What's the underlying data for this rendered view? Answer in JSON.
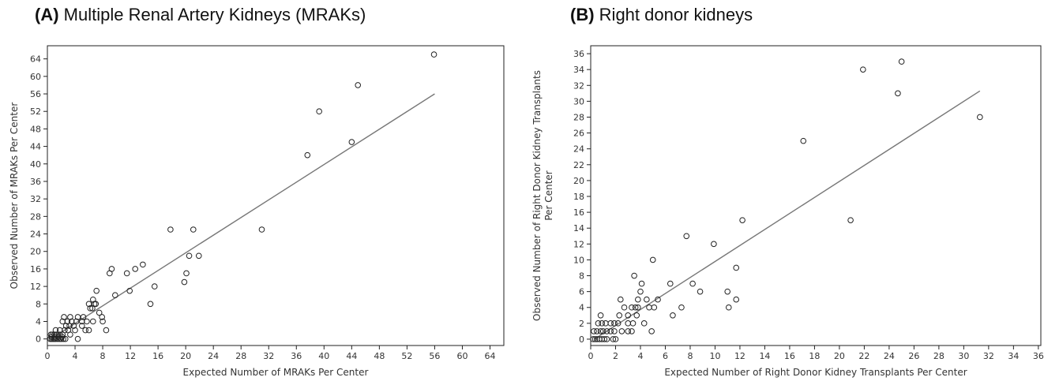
{
  "chart_data": [
    {
      "type": "scatter",
      "panel_label": "(A)",
      "title": "Multiple Renal Artery Kidneys (MRAKs)",
      "xlabel": "Expected Number of MRAKs Per Center",
      "ylabel": "Observed Number of MRAKs Per Center",
      "xlim": [
        0,
        66
      ],
      "ylim": [
        -1.5,
        67
      ],
      "xticks": [
        0,
        4,
        8,
        12,
        16,
        20,
        24,
        28,
        32,
        36,
        40,
        44,
        48,
        52,
        56,
        60,
        64
      ],
      "yticks": [
        0,
        4,
        8,
        12,
        16,
        20,
        24,
        28,
        32,
        36,
        40,
        44,
        48,
        52,
        56,
        60,
        64
      ],
      "fit_line": [
        [
          0.5,
          0
        ],
        [
          56,
          56
        ]
      ],
      "points": [
        [
          0.4,
          0
        ],
        [
          0.6,
          0
        ],
        [
          0.8,
          0
        ],
        [
          1.0,
          0
        ],
        [
          1.2,
          0
        ],
        [
          1.5,
          0
        ],
        [
          1.8,
          0
        ],
        [
          2.0,
          0
        ],
        [
          2.3,
          0
        ],
        [
          2.6,
          0
        ],
        [
          0.5,
          1
        ],
        [
          0.7,
          1
        ],
        [
          1.0,
          1
        ],
        [
          1.3,
          1
        ],
        [
          1.8,
          1
        ],
        [
          2.2,
          1
        ],
        [
          3.3,
          1
        ],
        [
          0.6,
          0.5
        ],
        [
          1.1,
          0.5
        ],
        [
          1.6,
          0.5
        ],
        [
          2.1,
          0.5
        ],
        [
          1.2,
          2
        ],
        [
          1.8,
          2
        ],
        [
          2.5,
          2
        ],
        [
          3.0,
          2
        ],
        [
          4.0,
          2
        ],
        [
          5.5,
          2
        ],
        [
          6.0,
          2
        ],
        [
          8.5,
          2
        ],
        [
          2.7,
          3
        ],
        [
          3.2,
          3
        ],
        [
          3.8,
          3
        ],
        [
          5.0,
          3
        ],
        [
          2.2,
          4
        ],
        [
          2.9,
          4
        ],
        [
          3.5,
          4
        ],
        [
          4.2,
          4
        ],
        [
          5.0,
          4
        ],
        [
          5.7,
          4
        ],
        [
          6.6,
          4
        ],
        [
          8.0,
          4
        ],
        [
          2.4,
          5
        ],
        [
          3.3,
          5
        ],
        [
          4.4,
          5
        ],
        [
          5.2,
          5
        ],
        [
          7.9,
          5
        ],
        [
          7.5,
          6
        ],
        [
          6.2,
          7
        ],
        [
          6.5,
          7
        ],
        [
          6.8,
          8
        ],
        [
          7.0,
          8
        ],
        [
          6.0,
          8
        ],
        [
          6.6,
          9
        ],
        [
          4.4,
          0
        ],
        [
          7.1,
          11
        ],
        [
          9.8,
          10
        ],
        [
          9.0,
          15
        ],
        [
          9.3,
          16
        ],
        [
          11.5,
          15
        ],
        [
          11.9,
          11
        ],
        [
          12.7,
          16
        ],
        [
          13.8,
          17
        ],
        [
          14.9,
          8
        ],
        [
          15.5,
          12
        ],
        [
          17.8,
          25
        ],
        [
          19.8,
          13
        ],
        [
          20.1,
          15
        ],
        [
          20.5,
          19
        ],
        [
          21.1,
          25
        ],
        [
          21.9,
          19
        ],
        [
          31.0,
          25
        ],
        [
          37.6,
          42
        ],
        [
          39.3,
          52
        ],
        [
          44.0,
          45
        ],
        [
          44.9,
          58
        ],
        [
          55.9,
          65
        ]
      ]
    },
    {
      "type": "scatter",
      "panel_label": "(B)",
      "title": "Right donor kidneys",
      "xlabel": "Expected Number of Right Donor Kidney Transplants Per Center",
      "ylabel": "Observed Number of Right Donor Kidney Transplants Per Center",
      "xlim": [
        0,
        36.2
      ],
      "ylim": [
        -0.8,
        37
      ],
      "xticks": [
        0,
        2,
        4,
        6,
        8,
        10,
        12,
        14,
        16,
        18,
        20,
        22,
        24,
        26,
        28,
        30,
        32,
        34,
        36
      ],
      "yticks": [
        0,
        2,
        4,
        6,
        8,
        10,
        12,
        14,
        16,
        18,
        20,
        22,
        24,
        26,
        28,
        30,
        32,
        34,
        36
      ],
      "fit_line": [
        [
          0.3,
          0
        ],
        [
          31.3,
          31.3
        ]
      ],
      "points": [
        [
          0.2,
          0
        ],
        [
          0.35,
          0
        ],
        [
          0.5,
          0
        ],
        [
          0.7,
          0
        ],
        [
          0.9,
          0
        ],
        [
          1.1,
          0
        ],
        [
          1.3,
          0
        ],
        [
          1.8,
          0
        ],
        [
          2.0,
          0
        ],
        [
          0.25,
          1
        ],
        [
          0.5,
          1
        ],
        [
          0.8,
          1
        ],
        [
          1.0,
          1
        ],
        [
          1.3,
          1
        ],
        [
          1.6,
          1
        ],
        [
          1.9,
          1
        ],
        [
          2.5,
          1
        ],
        [
          3.0,
          1
        ],
        [
          3.3,
          1
        ],
        [
          0.6,
          2
        ],
        [
          0.9,
          2
        ],
        [
          1.2,
          2
        ],
        [
          1.6,
          2
        ],
        [
          1.9,
          2
        ],
        [
          2.2,
          2
        ],
        [
          3.0,
          2
        ],
        [
          3.4,
          2
        ],
        [
          4.3,
          2
        ],
        [
          0.8,
          3
        ],
        [
          2.3,
          3
        ],
        [
          3.0,
          3
        ],
        [
          3.7,
          3
        ],
        [
          6.6,
          3
        ],
        [
          2.7,
          4
        ],
        [
          3.3,
          4
        ],
        [
          3.6,
          4
        ],
        [
          3.8,
          4
        ],
        [
          4.7,
          4
        ],
        [
          5.1,
          4
        ],
        [
          7.3,
          4
        ],
        [
          11.1,
          4
        ],
        [
          2.4,
          5
        ],
        [
          3.8,
          5
        ],
        [
          4.5,
          5
        ],
        [
          5.4,
          5
        ],
        [
          11.7,
          5
        ],
        [
          4.0,
          6
        ],
        [
          8.8,
          6
        ],
        [
          11.0,
          6
        ],
        [
          4.1,
          7
        ],
        [
          6.4,
          7
        ],
        [
          8.2,
          7
        ],
        [
          3.5,
          8
        ],
        [
          11.7,
          9
        ],
        [
          5.0,
          10
        ],
        [
          9.9,
          12
        ],
        [
          7.7,
          13
        ],
        [
          12.2,
          15
        ],
        [
          17.1,
          25
        ],
        [
          20.9,
          15
        ],
        [
          21.9,
          34
        ],
        [
          24.7,
          31
        ],
        [
          25.0,
          35
        ],
        [
          31.3,
          28
        ],
        [
          4.9,
          1
        ]
      ]
    }
  ]
}
